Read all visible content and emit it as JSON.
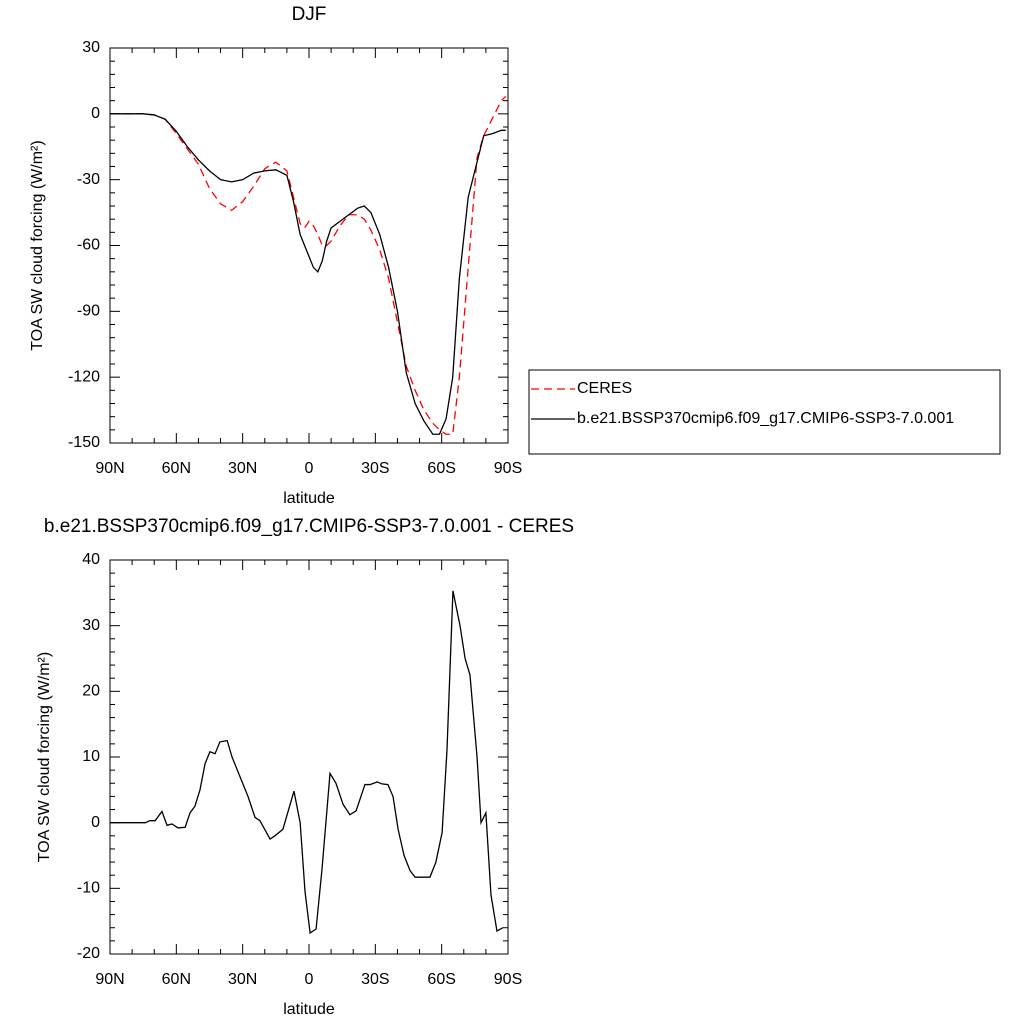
{
  "chart_data": [
    {
      "type": "line",
      "title": "DJF",
      "xlabel": "latitude",
      "ylabel": "TOA SW cloud forcing (W/m²)",
      "x": [
        90,
        85,
        80,
        75,
        70,
        65,
        60,
        55,
        50,
        45,
        40,
        35,
        30,
        25,
        20,
        15,
        10,
        7,
        4,
        2,
        0,
        -2,
        -4,
        -6,
        -8,
        -10,
        -14,
        -18,
        -22,
        -25,
        -28,
        -32,
        -36,
        -40,
        -44,
        -48,
        -52,
        -56,
        -59,
        -62,
        -65,
        -68,
        -72,
        -76,
        -79,
        -83,
        -87,
        -89
      ],
      "series": [
        {
          "name": "CERES",
          "color": "#ff0000",
          "dash": true,
          "values": [
            0,
            0,
            0,
            0,
            -0.5,
            -2.5,
            -9,
            -16,
            -23,
            -34,
            -41,
            -44,
            -40,
            -33,
            -25,
            -22,
            -26,
            -38,
            -50,
            -52,
            -49,
            -51,
            -55,
            -60,
            -60,
            -58,
            -51,
            -46,
            -46,
            -48,
            -53,
            -62,
            -75,
            -95,
            -115,
            -126,
            -135,
            -141,
            -144,
            -146,
            -146,
            -120,
            -70,
            -20,
            -10,
            -2,
            6,
            8
          ]
        },
        {
          "name": "b.e21.BSSP370cmip6.f09_g17.CMIP6-SSP3-7.0.001",
          "color": "#000000",
          "dash": false,
          "values": [
            0,
            0,
            0,
            0,
            -0.5,
            -2.5,
            -8,
            -15,
            -21,
            -26,
            -30,
            -31,
            -30,
            -27,
            -26,
            -25.5,
            -28,
            -40,
            -55,
            -60,
            -65,
            -70,
            -72,
            -67,
            -58,
            -52,
            -49,
            -46,
            -43,
            -42,
            -45,
            -55,
            -70,
            -90,
            -118,
            -132,
            -140,
            -146,
            -146,
            -139,
            -120,
            -75,
            -38,
            -22,
            -10,
            -9,
            -7.5,
            -7.5
          ]
        }
      ],
      "xlim": [
        90,
        -90
      ],
      "xticks": [
        {
          "value": 90,
          "label": "90N"
        },
        {
          "value": 60,
          "label": "60N"
        },
        {
          "value": 30,
          "label": "30N"
        },
        0,
        {
          "value": -30,
          "label": "30S"
        },
        {
          "value": -60,
          "label": "60S"
        },
        {
          "value": -90,
          "label": "90S"
        }
      ],
      "ylim": [
        -150,
        30
      ],
      "yticks": [
        30,
        0,
        -30,
        -60,
        -90,
        -120,
        -150
      ],
      "legend": "right"
    },
    {
      "type": "line",
      "title": "b.e21.BSSP370cmip6.f09_g17.CMIP6-SSP3-7.0.001 - CERES",
      "xlabel": "latitude",
      "ylabel": "TOA SW cloud forcing (W/m²)",
      "x": [
        90,
        74,
        72,
        69.6,
        66.5,
        64.2,
        62,
        59.2,
        56,
        53.8,
        51.6,
        49.3,
        47,
        44.8,
        42.5,
        40.3,
        37,
        34.8,
        31.2,
        27.6,
        24.4,
        22.2,
        17.6,
        15.4,
        11.8,
        6.8,
        4,
        1.8,
        -0.5,
        -3.2,
        -5.9,
        -9.5,
        -12.2,
        -15.4,
        -18.5,
        -21.3,
        -25.3,
        -27.6,
        -30.8,
        -33,
        -35.7,
        -38,
        -40.3,
        -43,
        -45.7,
        -48,
        -50.2,
        -54.7,
        -57.4,
        -60.2,
        -62.4,
        -65.1,
        -68.3,
        -70.6,
        -72.8,
        -76,
        -77.8,
        -80,
        -82.3,
        -85,
        -87.7
      ],
      "values": [
        0,
        0,
        0.3,
        0.3,
        1.7,
        -0.4,
        -0.2,
        -0.8,
        -0.7,
        1.5,
        2.5,
        5,
        9,
        10.8,
        10.5,
        12.3,
        12.5,
        10,
        7,
        4,
        0.8,
        0.3,
        -2.5,
        -2,
        -1,
        4.8,
        0,
        -10.5,
        -16.8,
        -16.2,
        -7,
        7.5,
        6,
        2.8,
        1.2,
        1.8,
        5.8,
        5.8,
        6.2,
        5.9,
        5.8,
        4,
        -1,
        -5,
        -7.3,
        -8.3,
        -8.3,
        -8.3,
        -6,
        -1.5,
        11,
        35.3,
        30,
        25,
        22.5,
        10,
        0,
        1.5,
        -11,
        -16.5,
        -16
      ],
      "color": "#000000",
      "xlim": [
        90,
        -90
      ],
      "xticks": [
        {
          "value": 90,
          "label": "90N"
        },
        {
          "value": 60,
          "label": "60N"
        },
        {
          "value": 30,
          "label": "30N"
        },
        0,
        {
          "value": -30,
          "label": "30S"
        },
        {
          "value": -60,
          "label": "60S"
        },
        {
          "value": -90,
          "label": "90S"
        }
      ],
      "ylim": [
        -20,
        40
      ],
      "yticks": [
        40,
        30,
        20,
        10,
        0,
        -10,
        -20
      ]
    }
  ]
}
